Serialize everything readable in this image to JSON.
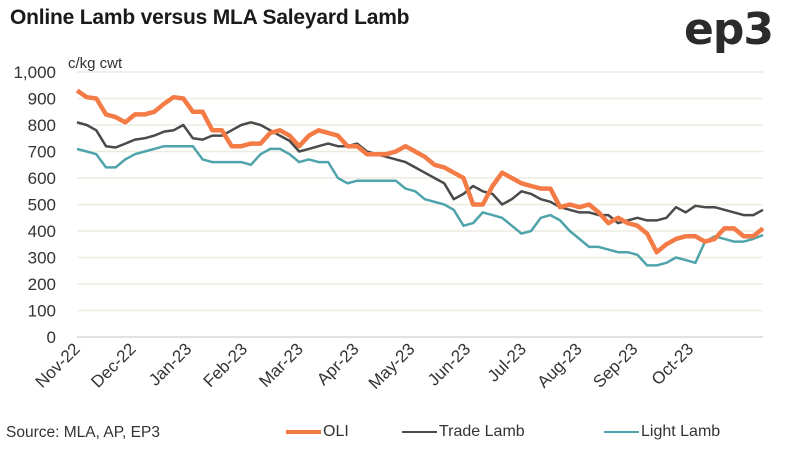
{
  "chart_data": {
    "type": "line",
    "title": "Online Lamb versus MLA Saleyard Lamb",
    "ylabel": "c/kg cwt",
    "xlabel": "",
    "ylim": [
      0,
      1000
    ],
    "yticks": [
      "0",
      "100",
      "200",
      "300",
      "400",
      "500",
      "600",
      "700",
      "800",
      "900",
      "1,000"
    ],
    "ytick_values": [
      0,
      100,
      200,
      300,
      400,
      500,
      600,
      700,
      800,
      900,
      1000
    ],
    "xticks": [
      "Nov-22",
      "Dec-22",
      "Jan-23",
      "Feb-23",
      "Mar-23",
      "Apr-23",
      "May-23",
      "Jun-23",
      "Jul-23",
      "Aug-23",
      "Sep-23",
      "Oct-23"
    ],
    "grid": true,
    "legend_position": "bottom",
    "x_range_months": [
      0,
      12.3
    ],
    "series": [
      {
        "name": "OLI",
        "color": "#f47b45",
        "values": [
          930,
          905,
          900,
          840,
          830,
          810,
          840,
          840,
          850,
          880,
          905,
          900,
          850,
          850,
          780,
          780,
          720,
          720,
          730,
          730,
          770,
          780,
          760,
          720,
          760,
          780,
          770,
          760,
          720,
          720,
          690,
          690,
          690,
          700,
          720,
          700,
          680,
          650,
          640,
          620,
          600,
          500,
          500,
          570,
          620,
          600,
          580,
          570,
          560,
          560,
          490,
          500,
          490,
          500,
          470,
          430,
          450,
          430,
          420,
          390,
          320,
          350,
          370,
          380,
          380,
          360,
          370,
          410,
          410,
          380,
          380,
          410
        ]
      },
      {
        "name": "Trade Lamb",
        "color": "#4a4a4a",
        "values": [
          810,
          800,
          780,
          720,
          715,
          730,
          745,
          750,
          760,
          775,
          780,
          800,
          750,
          745,
          760,
          760,
          780,
          800,
          810,
          800,
          780,
          760,
          740,
          700,
          710,
          720,
          730,
          720,
          720,
          730,
          700,
          690,
          680,
          670,
          660,
          640,
          620,
          600,
          580,
          520,
          540,
          570,
          550,
          540,
          500,
          520,
          550,
          540,
          520,
          510,
          490,
          480,
          470,
          470,
          460,
          460,
          430,
          440,
          450,
          440,
          440,
          450,
          490,
          470,
          495,
          490,
          490,
          480,
          470,
          460,
          460,
          480
        ]
      },
      {
        "name": "Light Lamb",
        "color": "#4fa3ab",
        "values": [
          710,
          700,
          690,
          640,
          640,
          670,
          690,
          700,
          710,
          720,
          720,
          720,
          720,
          670,
          660,
          660,
          660,
          660,
          650,
          690,
          710,
          710,
          690,
          660,
          670,
          660,
          660,
          600,
          580,
          590,
          590,
          590,
          590,
          590,
          560,
          550,
          520,
          510,
          500,
          480,
          420,
          430,
          470,
          460,
          450,
          420,
          390,
          400,
          450,
          460,
          440,
          400,
          370,
          340,
          340,
          330,
          320,
          320,
          310,
          270,
          270,
          280,
          300,
          290,
          280,
          360,
          380,
          370,
          360,
          360,
          370,
          385
        ]
      }
    ]
  },
  "source": "Source: MLA, AP, EP3",
  "logo": "ep3",
  "legend": [
    {
      "label": "OLI",
      "color": "#f47b45"
    },
    {
      "label": "Trade Lamb",
      "color": "#4a4a4a"
    },
    {
      "label": "Light Lamb",
      "color": "#4fa3ab"
    }
  ]
}
